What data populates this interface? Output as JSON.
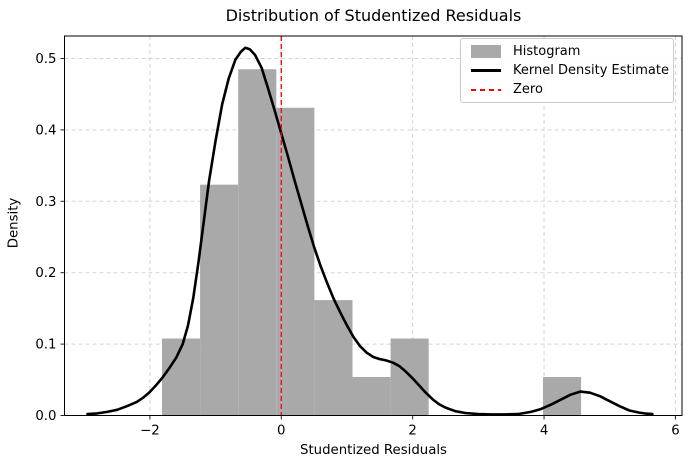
{
  "chart_data": {
    "type": "bar",
    "subtype": "histogram with kde line overlay and vertical reference line",
    "title": "Distribution of Studentized Residuals",
    "xlabel": "Studentized Residuals",
    "ylabel": "Density",
    "xlim": [
      -3.3,
      6.1
    ],
    "ylim": [
      0,
      0.5315
    ],
    "xtick_values": [
      -2,
      0,
      2,
      4,
      6
    ],
    "xtick_labels": [
      "−2",
      "0",
      "2",
      "4",
      "6"
    ],
    "ytick_values": [
      0.0,
      0.1,
      0.2,
      0.3,
      0.4,
      0.5
    ],
    "ytick_labels": [
      "0.0",
      "0.1",
      "0.2",
      "0.3",
      "0.4",
      "0.5"
    ],
    "grid": true,
    "grid_style": "dashed",
    "legend": {
      "position": "upper right",
      "entries": [
        "Histogram",
        "Kernel Density Estimate",
        "Zero"
      ]
    },
    "colors": {
      "histogram": "#a9a9a9",
      "kde": "#000000",
      "zero_line": "#ff0000",
      "grid": "#d4d4d4",
      "spine": "#000000"
    },
    "series": [
      {
        "name": "Histogram",
        "type": "bar",
        "bin_edges": [
          -1.816,
          -1.236,
          -0.656,
          -0.076,
          0.504,
          1.084,
          1.664,
          2.244,
          2.824,
          3.404,
          3.984,
          4.564
        ],
        "densities": [
          0.1078,
          0.3233,
          0.4849,
          0.431,
          0.1616,
          0.0539,
          0.1078,
          0,
          0,
          0,
          0.0539
        ]
      },
      {
        "name": "Kernel Density Estimate",
        "type": "line",
        "points": [
          [
            -2.95,
            0.002
          ],
          [
            -2.8,
            0.003
          ],
          [
            -2.65,
            0.005
          ],
          [
            -2.5,
            0.008
          ],
          [
            -2.35,
            0.013
          ],
          [
            -2.2,
            0.019
          ],
          [
            -2.1,
            0.025
          ],
          [
            -2.0,
            0.033
          ],
          [
            -1.9,
            0.043
          ],
          [
            -1.8,
            0.054
          ],
          [
            -1.7,
            0.067
          ],
          [
            -1.6,
            0.081
          ],
          [
            -1.5,
            0.1
          ],
          [
            -1.42,
            0.126
          ],
          [
            -1.34,
            0.165
          ],
          [
            -1.26,
            0.215
          ],
          [
            -1.18,
            0.272
          ],
          [
            -1.1,
            0.328
          ],
          [
            -1.0,
            0.385
          ],
          [
            -0.9,
            0.436
          ],
          [
            -0.8,
            0.472
          ],
          [
            -0.7,
            0.498
          ],
          [
            -0.62,
            0.509
          ],
          [
            -0.55,
            0.515
          ],
          [
            -0.48,
            0.513
          ],
          [
            -0.4,
            0.505
          ],
          [
            -0.3,
            0.487
          ],
          [
            -0.2,
            0.458
          ],
          [
            -0.1,
            0.427
          ],
          [
            0,
            0.395
          ],
          [
            0.1,
            0.363
          ],
          [
            0.2,
            0.33
          ],
          [
            0.3,
            0.298
          ],
          [
            0.4,
            0.266
          ],
          [
            0.5,
            0.236
          ],
          [
            0.6,
            0.209
          ],
          [
            0.7,
            0.185
          ],
          [
            0.8,
            0.163
          ],
          [
            0.9,
            0.144
          ],
          [
            1.0,
            0.126
          ],
          [
            1.1,
            0.11
          ],
          [
            1.2,
            0.097
          ],
          [
            1.3,
            0.088
          ],
          [
            1.4,
            0.082
          ],
          [
            1.5,
            0.079
          ],
          [
            1.6,
            0.077
          ],
          [
            1.7,
            0.074
          ],
          [
            1.8,
            0.069
          ],
          [
            1.9,
            0.061
          ],
          [
            2.0,
            0.052
          ],
          [
            2.1,
            0.042
          ],
          [
            2.2,
            0.032
          ],
          [
            2.3,
            0.023
          ],
          [
            2.4,
            0.016
          ],
          [
            2.5,
            0.011
          ],
          [
            2.65,
            0.006
          ],
          [
            2.8,
            0.0035
          ],
          [
            3.0,
            0.002
          ],
          [
            3.2,
            0.0015
          ],
          [
            3.4,
            0.0015
          ],
          [
            3.6,
            0.002
          ],
          [
            3.8,
            0.005
          ],
          [
            3.95,
            0.009
          ],
          [
            4.1,
            0.015
          ],
          [
            4.25,
            0.022
          ],
          [
            4.4,
            0.029
          ],
          [
            4.55,
            0.0335
          ],
          [
            4.7,
            0.032
          ],
          [
            4.85,
            0.027
          ],
          [
            5.0,
            0.02
          ],
          [
            5.15,
            0.013
          ],
          [
            5.3,
            0.007
          ],
          [
            5.45,
            0.004
          ],
          [
            5.55,
            0.0027
          ],
          [
            5.65,
            0.002
          ]
        ]
      },
      {
        "name": "Zero",
        "type": "vline",
        "x": 0,
        "style": "dashed"
      }
    ]
  }
}
